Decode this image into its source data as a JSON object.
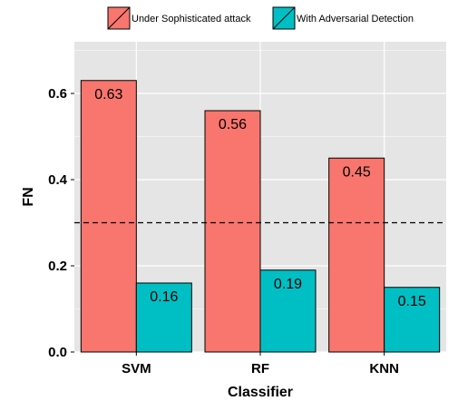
{
  "chart_data": {
    "type": "bar",
    "categories": [
      "SVM",
      "RF",
      "KNN"
    ],
    "series": [
      {
        "name": "Under Sophisticated attack",
        "values": [
          0.63,
          0.56,
          0.45
        ],
        "labels": [
          "0.63",
          "0.56",
          "0.45"
        ],
        "color": "#F8766D"
      },
      {
        "name": "With Adversarial Detection",
        "values": [
          0.16,
          0.19,
          0.15
        ],
        "labels": [
          "0.16",
          "0.19",
          "0.15"
        ],
        "color": "#00BFC4"
      }
    ],
    "xlabel": "Classifier",
    "ylabel": "FN",
    "ylim": [
      0,
      0.72
    ],
    "yticks": [
      0.0,
      0.2,
      0.4,
      0.6
    ],
    "ytick_labels": [
      "0.0",
      "0.2",
      "0.4",
      "0.6"
    ],
    "reference_line": 0.3,
    "grid": true,
    "legend_position": "top",
    "panel_background": "#E5E5E5",
    "grid_color": "#FFFFFF",
    "bar_outline": "#000000"
  }
}
